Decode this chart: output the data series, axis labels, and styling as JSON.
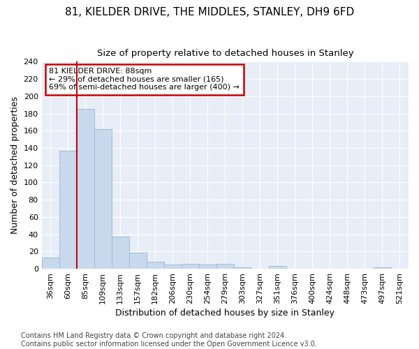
{
  "title1": "81, KIELDER DRIVE, THE MIDDLES, STANLEY, DH9 6FD",
  "title2": "Size of property relative to detached houses in Stanley",
  "xlabel": "Distribution of detached houses by size in Stanley",
  "ylabel": "Number of detached properties",
  "bar_color": "#c8d9ee",
  "bar_edge_color": "#a0bbda",
  "vline_color": "#cc0000",
  "vline_x": 1.5,
  "annotation_text": "81 KIELDER DRIVE: 88sqm\n← 29% of detached houses are smaller (165)\n69% of semi-detached houses are larger (400) →",
  "annotation_box_color": "white",
  "annotation_box_edge": "#cc0000",
  "categories": [
    "36sqm",
    "60sqm",
    "85sqm",
    "109sqm",
    "133sqm",
    "157sqm",
    "182sqm",
    "206sqm",
    "230sqm",
    "254sqm",
    "279sqm",
    "303sqm",
    "327sqm",
    "351sqm",
    "376sqm",
    "400sqm",
    "424sqm",
    "448sqm",
    "473sqm",
    "497sqm",
    "521sqm"
  ],
  "values": [
    13,
    137,
    185,
    162,
    37,
    19,
    8,
    5,
    6,
    5,
    6,
    2,
    0,
    3,
    0,
    0,
    0,
    0,
    0,
    2,
    0
  ],
  "ylim": [
    0,
    240
  ],
  "yticks": [
    0,
    20,
    40,
    60,
    80,
    100,
    120,
    140,
    160,
    180,
    200,
    220,
    240
  ],
  "footer": "Contains HM Land Registry data © Crown copyright and database right 2024.\nContains public sector information licensed under the Open Government Licence v3.0.",
  "background_color": "#ffffff",
  "plot_bg_color": "#e8eef7",
  "grid_color": "#ffffff",
  "title_fontsize": 11,
  "subtitle_fontsize": 9.5,
  "axis_label_fontsize": 9,
  "tick_fontsize": 8,
  "annotation_fontsize": 8,
  "footer_fontsize": 7
}
